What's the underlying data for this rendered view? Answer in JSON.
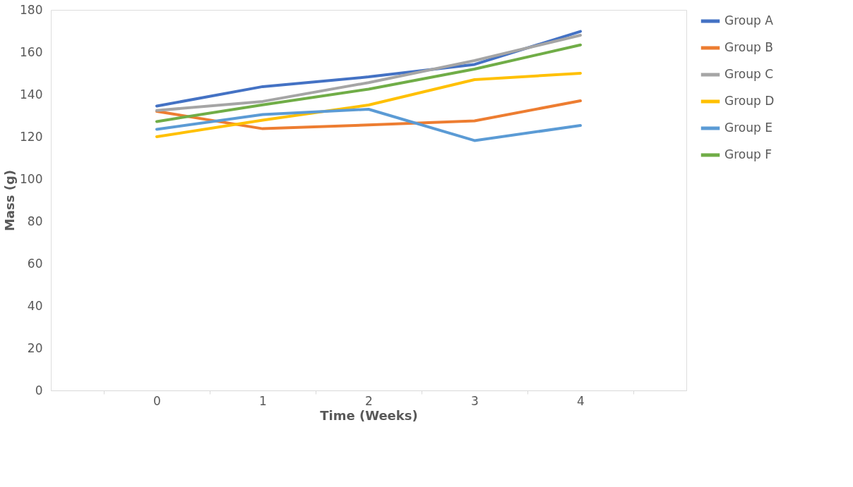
{
  "chart_data": {
    "type": "line",
    "xlabel": "Time (Weeks)",
    "ylabel": "Mass (g)",
    "categories": [
      "0",
      "1",
      "2",
      "3",
      "4"
    ],
    "series": [
      {
        "name": "Group A",
        "color": "#4472c4",
        "values": [
          134.5,
          143.7,
          148.3,
          154.2,
          169.8
        ]
      },
      {
        "name": "Group B",
        "color": "#ed7d31",
        "values": [
          132,
          123.8,
          125.6,
          127.5,
          137
        ]
      },
      {
        "name": "Group C",
        "color": "#a5a5a5",
        "values": [
          132.4,
          136.7,
          145.6,
          156,
          168
        ]
      },
      {
        "name": "Group D",
        "color": "#ffc000",
        "values": [
          120,
          127.8,
          135,
          147,
          150
        ]
      },
      {
        "name": "Group E",
        "color": "#5b9bd5",
        "values": [
          123.5,
          130.5,
          133,
          118.2,
          125.3
        ]
      },
      {
        "name": "Group F",
        "color": "#70ad47",
        "values": [
          127.2,
          135.1,
          142.5,
          152,
          163.4
        ]
      }
    ],
    "ylim": [
      0,
      180
    ],
    "yticks": [
      0,
      20,
      40,
      60,
      80,
      100,
      120,
      140,
      160,
      180
    ],
    "grid": false,
    "legend": "right",
    "marker": "none",
    "line_style": "solid"
  }
}
